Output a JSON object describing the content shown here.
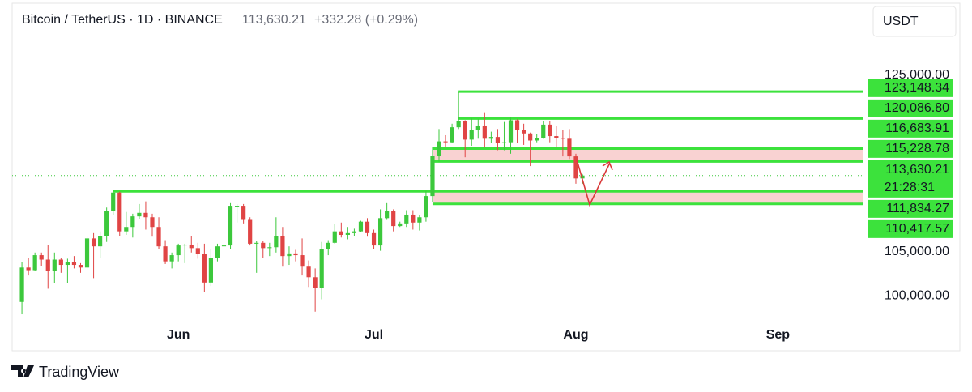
{
  "chart_data": {
    "type": "candlestick",
    "title": "Bitcoin / TetherUS · 1D · BINANCE",
    "change": "+332.28 (+0.29%)",
    "currency": "USDT",
    "up_color": "#3cc83c",
    "down_color": "#e04444",
    "level_color": "#3ce23c",
    "zone_color": "#f9d2d2",
    "open": [
      99300,
      103200,
      102900,
      104600,
      104100,
      102800,
      104100,
      103500,
      103800,
      103500,
      103200,
      106500,
      105600,
      106800,
      109600,
      111700,
      107300,
      107800,
      109000,
      109400,
      108900,
      107800,
      105600,
      103900,
      104600,
      105700,
      105800,
      105400,
      104700,
      101500,
      104300,
      105600,
      105700,
      110200,
      110200,
      108600,
      105900,
      106000,
      105400,
      105500,
      106800,
      104500,
      104800,
      104600,
      103300,
      102100,
      100900,
      105300,
      106000,
      107300,
      106900,
      107100,
      107300,
      108400,
      107100,
      105700,
      108800,
      109600,
      107900,
      108200,
      109200,
      108300,
      108900,
      111300,
      115900,
      117500,
      117400,
      119100,
      119800,
      117700,
      118800,
      119300,
      117800,
      118000,
      117300,
      117400,
      119900,
      118800,
      118400,
      117600,
      117900,
      119400,
      118100,
      117900,
      117800,
      115800,
      113300
    ],
    "high": [
      103800,
      104300,
      104900,
      104900,
      105800,
      104900,
      104300,
      104200,
      104500,
      103700,
      106700,
      107100,
      107300,
      110000,
      111900,
      111800,
      109500,
      109300,
      110400,
      110700,
      109300,
      108900,
      106300,
      104900,
      105900,
      105900,
      106800,
      106000,
      105900,
      105300,
      105900,
      106400,
      110500,
      110400,
      110400,
      108900,
      106200,
      106200,
      106000,
      108900,
      107800,
      105600,
      105200,
      106500,
      104000,
      103100,
      106100,
      106300,
      108100,
      108300,
      107800,
      107600,
      108500,
      108800,
      107500,
      109800,
      110500,
      109800,
      108400,
      109700,
      109700,
      109200,
      111900,
      116900,
      118900,
      118200,
      119500,
      123148,
      119900,
      120100,
      120000,
      120800,
      118600,
      118900,
      119700,
      120200,
      120000,
      119500,
      118500,
      118300,
      119800,
      119800,
      119300,
      118800,
      118900,
      116100,
      113800
    ],
    "low": [
      97900,
      102300,
      102800,
      103400,
      100800,
      101400,
      102600,
      101400,
      103100,
      102600,
      103000,
      102000,
      104300,
      106100,
      109200,
      106800,
      106900,
      106600,
      108700,
      107500,
      106700,
      105300,
      103600,
      103100,
      103900,
      103700,
      104900,
      104200,
      100400,
      101100,
      103900,
      104900,
      105300,
      108300,
      108200,
      105700,
      102600,
      104300,
      104500,
      104900,
      103300,
      103500,
      103900,
      102300,
      101000,
      98200,
      99600,
      104600,
      105900,
      106600,
      106400,
      106800,
      107200,
      106700,
      105300,
      105100,
      108600,
      107300,
      107800,
      107800,
      107500,
      107400,
      108400,
      110600,
      115200,
      116900,
      117300,
      118900,
      115700,
      117000,
      117800,
      116800,
      117300,
      116500,
      116500,
      116100,
      117300,
      117100,
      114700,
      117400,
      117800,
      117400,
      116900,
      115800,
      115500,
      112700,
      112700
    ],
    "close": [
      103200,
      102900,
      104600,
      104100,
      102800,
      104100,
      103500,
      103800,
      103500,
      103200,
      106500,
      105600,
      106800,
      109600,
      111700,
      107300,
      107800,
      109000,
      109400,
      108900,
      107800,
      105600,
      103900,
      104600,
      105700,
      105800,
      105400,
      104700,
      101500,
      104300,
      105600,
      105700,
      110200,
      110200,
      108600,
      105900,
      106000,
      105400,
      105500,
      106800,
      104500,
      104800,
      104600,
      103300,
      102100,
      100900,
      105300,
      106000,
      107300,
      106900,
      107100,
      107300,
      108400,
      107100,
      105700,
      108800,
      109600,
      107900,
      108200,
      109200,
      108300,
      108900,
      111300,
      115900,
      117500,
      117400,
      119100,
      119800,
      117700,
      118800,
      119300,
      117800,
      118000,
      117300,
      117400,
      119900,
      118800,
      118400,
      117600,
      117900,
      119400,
      118100,
      117900,
      117800,
      115800,
      113300,
      113630.21
    ],
    "xlim": [
      -1.5,
      129
    ],
    "xticks": [
      {
        "value": 24,
        "label": "Jun"
      },
      {
        "value": 54,
        "label": "Jul"
      },
      {
        "value": 85,
        "label": "Aug"
      },
      {
        "value": 116,
        "label": "Sep"
      }
    ],
    "ylim": [
      96800,
      129400
    ],
    "yticks": [
      {
        "value": 125000,
        "label": "125,000.00"
      },
      {
        "value": 105000,
        "label": "105,000.00"
      },
      {
        "value": 100000,
        "label": "100,000.00"
      }
    ],
    "levels": [
      {
        "value": 123148.34,
        "label": "123,148.34",
        "from": 67
      },
      {
        "value": 120086.8,
        "label": "120,086.80",
        "from": 67
      }
    ],
    "zones": [
      {
        "from": 63,
        "top": {
          "value": 116683.91,
          "label": "116,683.91",
          "from": 63
        },
        "bottom": {
          "value": 115228.78,
          "label": "115,228.78",
          "from": 63
        }
      },
      {
        "from": 63,
        "top": {
          "value": 111834.27,
          "label": "111,834.27",
          "from": 14
        },
        "bottom": {
          "value": 110417.57,
          "label": "110,417.57",
          "from": 63
        }
      }
    ],
    "last": {
      "value": 113630.21,
      "label": "113,630.21",
      "countdown": "21:28:31"
    }
  },
  "footer": {
    "brand": "TradingView"
  }
}
